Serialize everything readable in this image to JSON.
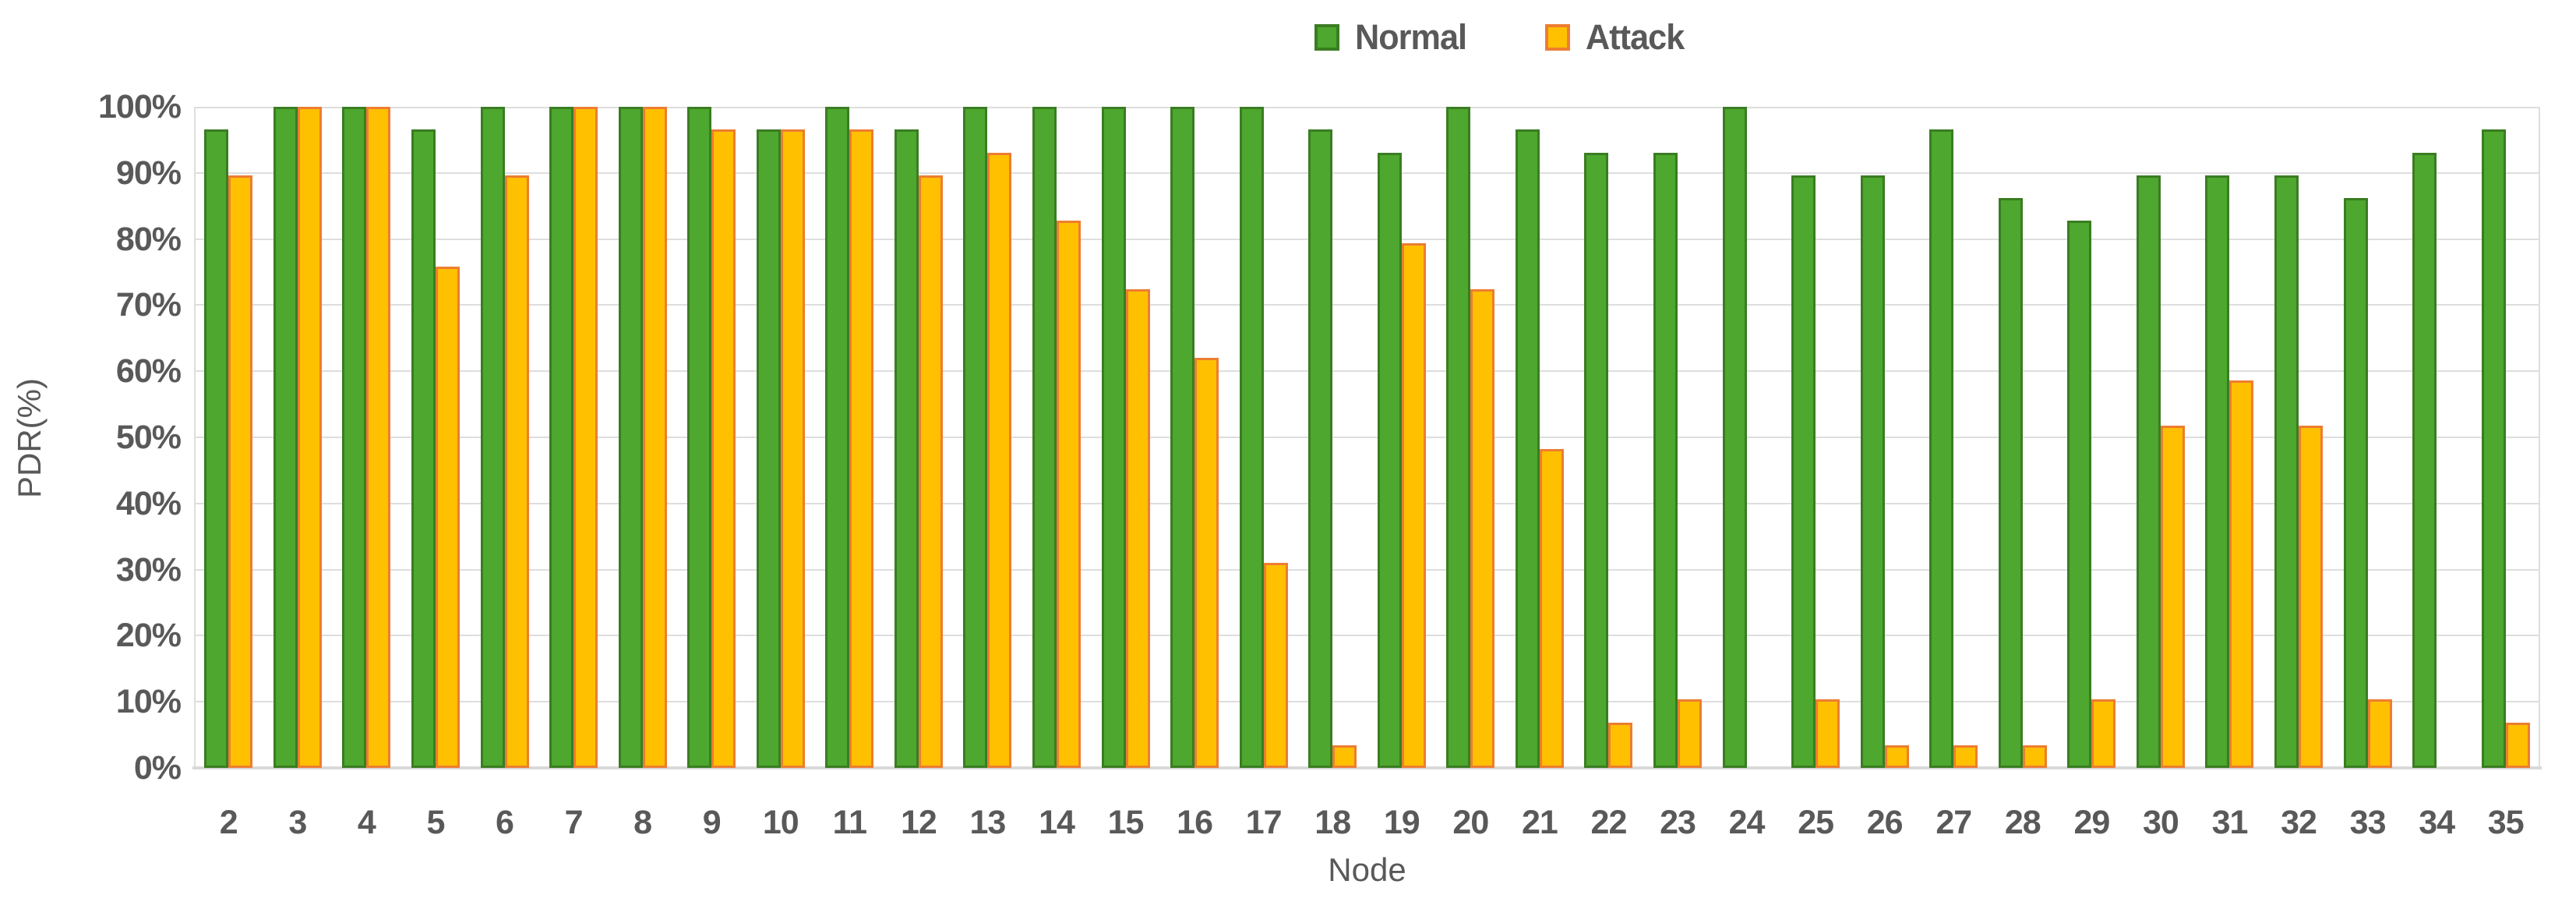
{
  "legend": {
    "items": [
      {
        "label": "Normal",
        "color": "#4EA72E",
        "border_color": "#3A7D22"
      },
      {
        "label": "Attack",
        "color": "#FFC000",
        "border_color": "#ED7D31"
      }
    ],
    "position": "top-center"
  },
  "y_axis": {
    "title": "PDR(%)",
    "tick_labels": [
      "0%",
      "10%",
      "20%",
      "30%",
      "40%",
      "50%",
      "60%",
      "70%",
      "80%",
      "90%",
      "100%"
    ]
  },
  "x_axis": {
    "title": "Node"
  },
  "colors": {
    "text": "#595959",
    "gridline": "#DEDEDE",
    "axis_line": "#D9D9D9",
    "background": "#FFFFFF"
  },
  "chart_data": {
    "type": "bar",
    "title": "",
    "xlabel": "Node",
    "ylabel": "PDR(%)",
    "ylim": [
      0,
      100
    ],
    "ytick_step": 10,
    "grid": true,
    "legend_position": "top-center",
    "categories": [
      2,
      3,
      4,
      5,
      6,
      7,
      8,
      9,
      10,
      11,
      12,
      13,
      14,
      15,
      16,
      17,
      18,
      19,
      20,
      21,
      22,
      23,
      24,
      25,
      26,
      27,
      28,
      29,
      30,
      31,
      32,
      33,
      34,
      35
    ],
    "series": [
      {
        "name": "Normal",
        "color": "#4EA72E",
        "border_color": "#3A7D22",
        "values": [
          96.55,
          100,
          100,
          96.55,
          100,
          100,
          100,
          100,
          96.55,
          100,
          96.55,
          100,
          100,
          100,
          100,
          100,
          96.55,
          93.1,
          100,
          96.55,
          93.1,
          93.1,
          100,
          89.66,
          89.66,
          96.55,
          86.21,
          82.76,
          89.66,
          89.66,
          89.66,
          86.21,
          93.1,
          96.55
        ]
      },
      {
        "name": "Attack",
        "color": "#FFC000",
        "border_color": "#ED7D31",
        "values": [
          89.66,
          100,
          100,
          75.86,
          89.66,
          100,
          100,
          96.55,
          96.55,
          96.55,
          89.66,
          93.1,
          82.76,
          72.41,
          62.07,
          31.03,
          3.45,
          79.31,
          72.41,
          48.28,
          6.9,
          10.34,
          0,
          10.34,
          3.45,
          3.45,
          3.45,
          10.34,
          51.72,
          58.62,
          51.72,
          10.34,
          0,
          6.9
        ]
      }
    ]
  }
}
